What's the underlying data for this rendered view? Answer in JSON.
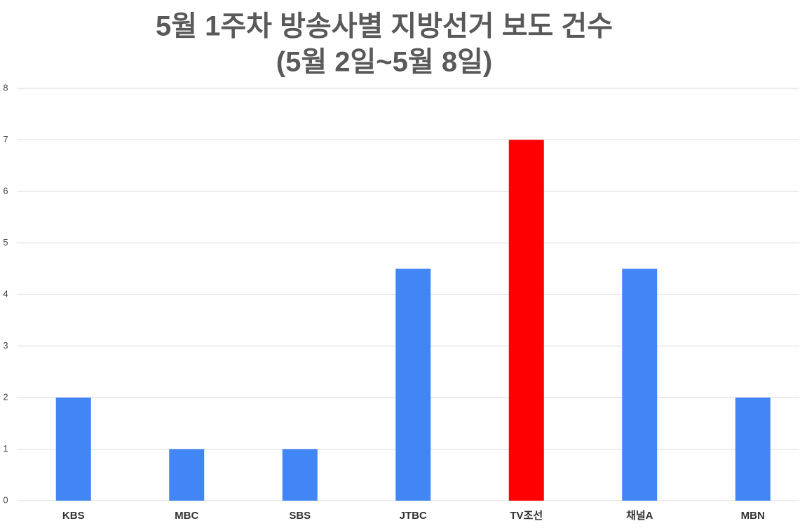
{
  "chart_data": {
    "type": "bar",
    "title": "5월 1주차 방송사별 지방선거 보도 건수",
    "subtitle": "(5월 2일~5월 8일)",
    "categories": [
      "KBS",
      "MBC",
      "SBS",
      "JTBC",
      "TV조선",
      "채널A",
      "MBN"
    ],
    "values": [
      2,
      1,
      1,
      4.5,
      7,
      4.5,
      2
    ],
    "colors": [
      "#4285f4",
      "#4285f4",
      "#4285f4",
      "#4285f4",
      "#ff0000",
      "#4285f4",
      "#4285f4"
    ],
    "ylim": [
      0,
      8
    ],
    "yticks": [
      0,
      1,
      2,
      3,
      4,
      5,
      6,
      7,
      8
    ],
    "grid": true
  }
}
